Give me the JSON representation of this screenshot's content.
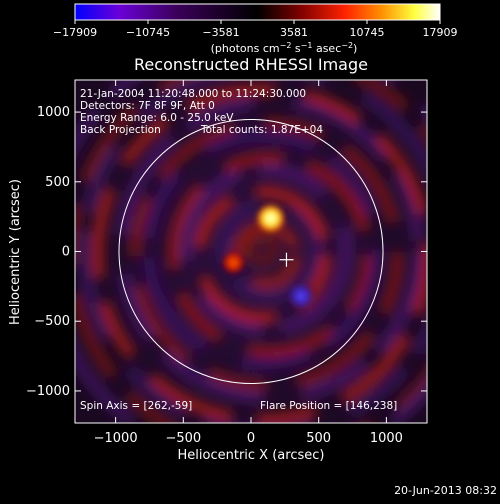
{
  "chart_data": {
    "type": "heatmap",
    "title": "Reconstructed RHESSI Image",
    "xlabel": "Heliocentric X (arcsec)",
    "ylabel": "Heliocentric Y (arcsec)",
    "xlim": [
      -1300,
      1300
    ],
    "ylim": [
      -1230,
      1230
    ],
    "x_ticks": [
      -1000,
      -500,
      0,
      500,
      1000
    ],
    "x_tick_labels": [
      "−1000",
      "−500",
      "0",
      "500",
      "1000"
    ],
    "y_ticks": [
      -1000,
      -500,
      0,
      500,
      1000
    ],
    "y_tick_labels": [
      "−1000",
      "−500",
      "0",
      "500",
      "1000"
    ],
    "colorbar": {
      "range": [
        -17909,
        17909
      ],
      "ticks": [
        "−17909",
        "−10745",
        "−3581",
        "3581",
        "10745",
        "17909"
      ],
      "unit_main": "(photons cm",
      "unit_sup1": "−2",
      "unit_mid1": " s",
      "unit_sup2": "−1",
      "unit_mid2": " asec",
      "unit_sup3": "−2",
      "unit_end": ")",
      "colors": [
        "#0000ff",
        "#6a00d8",
        "#3a0058",
        "#000000",
        "#800000",
        "#ff2200",
        "#ff9000",
        "#ffff40",
        "#ffffff"
      ]
    },
    "info_lines": [
      "21-Jan-2004 11:20:48.000 to 11:24:30.000",
      "Detectors: 7F 8F 9F, Att 0",
      "Energy Range: 6.0 - 25.0 keV",
      "Back Projection"
    ],
    "total_counts": "Total counts: 1.87E+04",
    "spin_axis": "Spin Axis = [262,-59]",
    "flare_position_label": "Flare Position = [146,238]",
    "solar_limb_radius_arcsec": 975,
    "flare_position": [
      146,
      238
    ],
    "spin_axis_position": [
      262,
      -59
    ],
    "sources": [
      {
        "x": 146,
        "y": 238,
        "sign": "positive",
        "intensity": "peak"
      },
      {
        "x": -130,
        "y": -80,
        "sign": "positive",
        "intensity": "medium"
      },
      {
        "x": 370,
        "y": -320,
        "sign": "negative",
        "intensity": "strong"
      }
    ]
  },
  "footer": {
    "timestamp": "20-Jun-2013 08:32"
  }
}
